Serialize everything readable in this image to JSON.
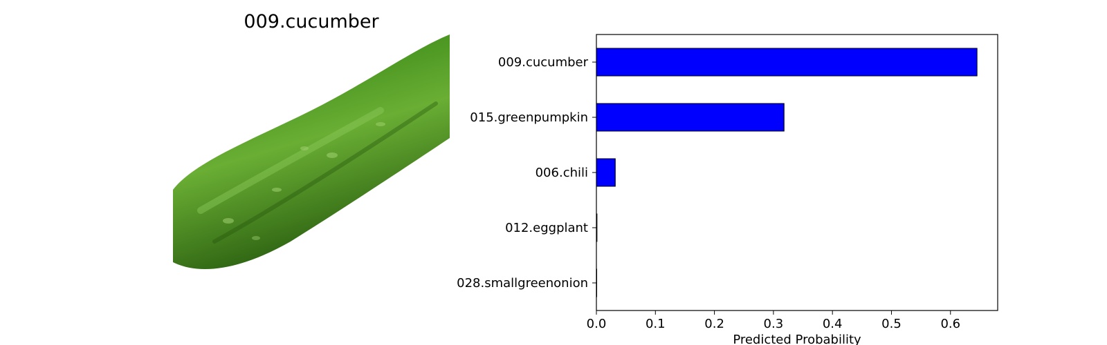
{
  "image_title": "009.cucumber",
  "colors": {
    "bar": "#0000ff",
    "bar_edge": "#000000",
    "cucumber_dark": "#2f6e14",
    "cucumber_mid": "#4f9a24",
    "cucumber_light": "#86c24a"
  },
  "chart_data": {
    "type": "bar",
    "orientation": "horizontal",
    "categories": [
      "009.cucumber",
      "015.greenpumpkin",
      "006.chili",
      "012.eggplant",
      "028.smallgreenonion"
    ],
    "values": [
      0.645,
      0.318,
      0.032,
      0.001,
      0.0005
    ],
    "xlabel": "Predicted Probability",
    "ylabel": "",
    "xlim": [
      0.0,
      0.68
    ],
    "xticks": [
      "0.0",
      "0.1",
      "0.2",
      "0.3",
      "0.4",
      "0.5",
      "0.6"
    ],
    "grid": false,
    "legend": "none"
  }
}
